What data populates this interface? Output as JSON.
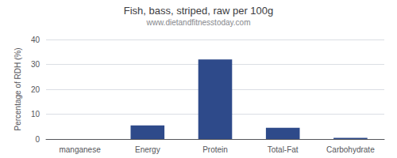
{
  "chart_data": {
    "type": "bar",
    "title": "Fish, bass, striped, raw per 100g",
    "subtitle": "www.dietandfitnesstoday.com",
    "categories": [
      "manganese",
      "Energy",
      "Protein",
      "Total-Fat",
      "Carbohydrate"
    ],
    "values": [
      0.0,
      5.5,
      32.0,
      4.5,
      0.5
    ],
    "color": "#2e4a8a",
    "ylabel": "Percentage of RDH (%)",
    "ylim": [
      0,
      40
    ],
    "yticks": [
      0,
      10,
      20,
      30,
      40
    ],
    "grid": true
  }
}
